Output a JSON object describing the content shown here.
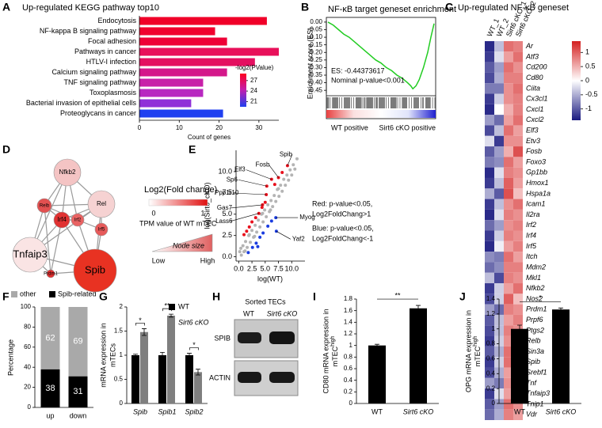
{
  "panel_labels": [
    "A",
    "B",
    "C",
    "D",
    "E",
    "F",
    "G",
    "H",
    "I",
    "J"
  ],
  "chart_data": [
    {
      "type": "hbar",
      "title": "Up-regulated KEGG pathway top10",
      "categories": [
        "Endocytosis",
        "NF-kappa B signaling pathway",
        "Focal adhesion",
        "Pathways in cancer",
        "HTLV-I infection",
        "Calcium signaling pathway",
        "TNF signaling pathway",
        "Toxoplasmosis",
        "Bacterial invasion of epithelial cells",
        "Proteoglycans in cancer"
      ],
      "values": [
        32,
        19,
        22,
        35,
        29,
        22,
        16,
        16,
        13,
        21
      ],
      "colors": [
        "#f00028",
        "#f0002e",
        "#ee0036",
        "#e8105a",
        "#e41060",
        "#d4188a",
        "#c820a8",
        "#b828c0",
        "#9030d8",
        "#2040f0"
      ],
      "xlim": [
        0,
        35
      ],
      "xticks": [
        0,
        10,
        20,
        30
      ],
      "xlabel": "Count of genes",
      "colorbar": {
        "title": "-log2(PValue)",
        "colors": [
          "#2040f0",
          "#c020b0",
          "#ff0020"
        ],
        "lim": [
          19.5,
          29
        ],
        "ticks": [
          27,
          24,
          21
        ]
      }
    },
    {
      "type": "line",
      "title": "NF-κB target geneset enrichment",
      "ylabel": "Enrichment score (ES)",
      "x": [
        0,
        5,
        10,
        15,
        20,
        25,
        30,
        35,
        40,
        45,
        50,
        55,
        60,
        65,
        70,
        75,
        78,
        80,
        83,
        86,
        90,
        94,
        97,
        100
      ],
      "values": [
        0,
        -0.02,
        -0.05,
        -0.08,
        -0.1,
        -0.13,
        -0.16,
        -0.19,
        -0.22,
        -0.25,
        -0.27,
        -0.3,
        -0.32,
        -0.35,
        -0.37,
        -0.4,
        -0.42,
        -0.44,
        -0.42,
        -0.38,
        -0.3,
        -0.2,
        -0.1,
        -0.01
      ],
      "color": "#22cc22",
      "xlim": [
        0,
        100
      ],
      "ylim": [
        -0.47,
        0.01
      ],
      "yticks": [
        {
          "value": 0,
          "label": "0.00"
        },
        {
          "value": -0.05,
          "label": "-0.05"
        },
        {
          "value": -0.1,
          "label": "-0.10"
        },
        {
          "value": -0.15,
          "label": "-0.15"
        },
        {
          "value": -0.2,
          "label": "-0.20"
        },
        {
          "value": -0.25,
          "label": "-0.25"
        },
        {
          "value": -0.3,
          "label": "-0.30"
        },
        {
          "value": -0.35,
          "label": "-0.35"
        },
        {
          "value": -0.4,
          "label": "-0.40"
        },
        {
          "value": -0.45,
          "label": "-0.45"
        }
      ],
      "annotations": [
        "ES: -0.44373617",
        "Nominal p-value<0.001"
      ],
      "bottom_labels": [
        "WT positive",
        "Sirt6 cKO positive"
      ]
    },
    {
      "type": "heatmap",
      "title": "Up-regulated NF-κB geneset",
      "columns": [
        "WT_1",
        "WT_2",
        "Sirt6 cKO_1",
        "Sirt6 cKO_2"
      ],
      "rows": [
        "Ar",
        "Atf3",
        "Cd200",
        "Cd80",
        "Ciita",
        "Cx3cl1",
        "Cxcl1",
        "Cxcl2",
        "Elf3",
        "Etv3",
        "Fosb",
        "Foxo3",
        "Gp1bb",
        "Hmox1",
        "Hspa1a",
        "Icam1",
        "Il2ra",
        "Irf2",
        "Irf4",
        "Irf5",
        "Itch",
        "Mdm2",
        "Mkl1",
        "Nfkb2",
        "Nos2",
        "Prdm1",
        "Prpf6",
        "Ptgs2",
        "Relb",
        "Sin3a",
        "Spib",
        "Srebf1",
        "Tnf",
        "Tnfaip3",
        "Tnip1",
        "Vdr"
      ],
      "values": [
        [
          -1.3,
          -0.4,
          0.9,
          0.8
        ],
        [
          -1.2,
          -0.2,
          0.6,
          0.9
        ],
        [
          -1.0,
          -0.6,
          0.9,
          0.7
        ],
        [
          -1.1,
          -0.5,
          0.8,
          0.8
        ],
        [
          -0.8,
          -0.8,
          0.7,
          0.9
        ],
        [
          -1.2,
          -0.3,
          0.7,
          0.8
        ],
        [
          -1.3,
          0.0,
          0.5,
          0.8
        ],
        [
          -0.6,
          -0.9,
          0.6,
          0.9
        ],
        [
          -1.1,
          -0.4,
          0.9,
          0.6
        ],
        [
          -0.2,
          -1.2,
          0.7,
          0.7
        ],
        [
          -1.0,
          -0.6,
          0.5,
          1.1
        ],
        [
          -0.8,
          -0.7,
          0.9,
          0.6
        ],
        [
          -1.3,
          -0.2,
          0.8,
          0.7
        ],
        [
          -1.2,
          -0.4,
          1.0,
          0.6
        ],
        [
          -0.5,
          -1.0,
          1.1,
          0.4
        ],
        [
          -1.2,
          -0.4,
          0.7,
          0.9
        ],
        [
          -1.3,
          -0.2,
          0.8,
          0.7
        ],
        [
          -0.9,
          -0.6,
          0.7,
          0.8
        ],
        [
          -1.2,
          -0.3,
          0.8,
          0.7
        ],
        [
          -1.3,
          -0.1,
          0.6,
          0.8
        ],
        [
          -0.7,
          -0.8,
          0.9,
          0.6
        ],
        [
          -0.9,
          -0.7,
          0.8,
          0.8
        ],
        [
          -0.4,
          -1.1,
          0.8,
          0.7
        ],
        [
          -1.2,
          -0.3,
          0.6,
          0.9
        ],
        [
          -1.1,
          -0.3,
          1.0,
          0.4
        ],
        [
          -0.6,
          -0.9,
          0.8,
          0.7
        ],
        [
          -1.0,
          -0.4,
          0.6,
          0.8
        ],
        [
          -1.1,
          -0.4,
          0.8,
          0.7
        ],
        [
          -1.2,
          -0.3,
          0.7,
          0.8
        ],
        [
          -1.0,
          -0.5,
          0.9,
          0.6
        ],
        [
          -1.2,
          -0.3,
          0.9,
          0.6
        ],
        [
          -1.1,
          -0.5,
          0.6,
          1.0
        ],
        [
          -0.6,
          -0.8,
          0.7,
          0.7
        ],
        [
          -1.2,
          -0.2,
          0.6,
          0.8
        ],
        [
          -1.0,
          -0.6,
          0.9,
          0.7
        ],
        [
          -0.9,
          -0.5,
          0.8,
          0.6
        ]
      ],
      "colorbar": {
        "colors": [
          "#1a1a80",
          "#ffffff",
          "#d42020"
        ],
        "lim": [
          -1.4,
          1.4
        ],
        "ticks": [
          1,
          0.5,
          0,
          -0.5,
          -1
        ]
      }
    },
    {
      "type": "scatter",
      "xlabel": "log(WT)",
      "ylabel": "log(Sirt6_cKO)",
      "xlim": [
        -0.5,
        12.5
      ],
      "ylim": [
        -0.5,
        12.5
      ],
      "xticks": [
        {
          "value": 0,
          "label": "0.0"
        },
        2.5,
        {
          "value": 5,
          "label": "5.0"
        },
        7.5,
        {
          "value": 10,
          "label": "10.0"
        }
      ],
      "yticks": [
        {
          "value": 0,
          "label": "0.0"
        },
        2.5,
        {
          "value": 5,
          "label": "5.0"
        },
        7.5,
        {
          "value": 10,
          "label": "10.0"
        }
      ],
      "series": [
        {
          "color": "#b4b4b4",
          "x": [
            0.2,
            0.5,
            0.8,
            1.0,
            1.3,
            1.6,
            1.9,
            2.2,
            2.5,
            2.8,
            3.1,
            3.4,
            3.7,
            4.0,
            4.3,
            4.6,
            4.9,
            5.2,
            5.5,
            5.8,
            6.1,
            6.4,
            6.7,
            7.0,
            7.3,
            7.6,
            7.9,
            8.2,
            8.5,
            8.8,
            9.1,
            9.4,
            9.7,
            10.0,
            10.3,
            10.6,
            11.0,
            0.4,
            1.2,
            2.0,
            3.0,
            4.5,
            6.0,
            7.5
          ],
          "values": [
            0.6,
            0.2,
            1.3,
            0.6,
            1.8,
            1.1,
            2.5,
            1.7,
            3.1,
            2.3,
            3.7,
            2.9,
            4.3,
            3.5,
            5.0,
            4.1,
            5.5,
            4.7,
            6.1,
            5.3,
            6.6,
            5.9,
            7.2,
            6.5,
            7.9,
            7.1,
            8.4,
            7.7,
            9.1,
            8.4,
            9.6,
            9.0,
            10.2,
            9.6,
            10.8,
            10.3,
            11.5,
            1.0,
            0.7,
            2.6,
            2.4,
            5.1,
            5.5,
            8.0
          ]
        },
        {
          "color": "#e8101c",
          "x": [
            1.5,
            2.5,
            3.2,
            3.8,
            4.4,
            4.5,
            5.0,
            5.2,
            5.3,
            6.2,
            6.8,
            7.5,
            8.2,
            9.2,
            1.0,
            2.0
          ],
          "values": [
            3.0,
            4.1,
            4.6,
            5.1,
            5.8,
            6.1,
            6.4,
            7.3,
            8.3,
            9.1,
            8.5,
            9.3,
            9.9,
            10.7,
            2.6,
            3.5
          ],
          "labels": [
            null,
            null,
            null,
            "Lass6",
            null,
            "Gas7",
            null,
            "Ppp1r10",
            "Sp6",
            "Elf3",
            null,
            "Fosb",
            null,
            "Spib",
            null,
            null
          ]
        },
        {
          "color": "#1a3ce0",
          "x": [
            1.8,
            2.6,
            3.3,
            4.0,
            4.6,
            5.5,
            6.2,
            7.0,
            7.1,
            3.6
          ],
          "values": [
            0.5,
            1.1,
            1.6,
            2.3,
            2.8,
            3.6,
            4.2,
            4.6,
            3.0,
            1.2
          ],
          "labels": [
            null,
            null,
            null,
            null,
            null,
            null,
            null,
            "Myog",
            "Yaf2",
            null
          ]
        }
      ],
      "legend_text": [
        "Red: p-value<0.05,",
        "Log2FoldChang>1",
        "Blue: p-value<0.05,",
        "Log2FoldChang<-1"
      ]
    },
    {
      "type": "stacked_bar",
      "ylabel": "Percentage",
      "categories": [
        "up",
        "down"
      ],
      "series": [
        {
          "name": "Spib-related",
          "color": "#000000",
          "values": [
            38,
            31
          ]
        },
        {
          "name": "other",
          "color": "#a9a9a9",
          "values": [
            62,
            69
          ]
        }
      ],
      "ylim": [
        0,
        100
      ],
      "yticks": [
        0,
        20,
        40,
        60,
        80,
        100
      ]
    },
    {
      "type": "grouped_bar",
      "ylabel": [
        "mRNA expression in",
        "mTECs"
      ],
      "categories": [
        "Spib",
        "Spib1",
        "Spib2"
      ],
      "series": [
        {
          "name": "WT",
          "color": "#000000",
          "values": [
            1.0,
            1.0,
            1.0
          ],
          "errors": [
            0.02,
            0.06,
            0.04
          ]
        },
        {
          "name": "Sirt6 cKO",
          "color": "#7f7f7f",
          "values": [
            1.48,
            1.82,
            0.65
          ],
          "errors": [
            0.07,
            0.03,
            0.06
          ]
        }
      ],
      "ylim": [
        0,
        2
      ],
      "yticks": [
        0,
        0.5,
        1,
        1.5,
        2
      ],
      "significance": [
        "*",
        "**",
        "*"
      ]
    },
    {
      "type": "bar",
      "ylabel": [
        "CD80 mRNA expression in",
        "mTEC"
      ],
      "ylabel_sup": "high",
      "categories": [
        "WT",
        "Sirt6 cKO"
      ],
      "values": [
        1.0,
        1.64
      ],
      "errors": [
        0.02,
        0.05
      ],
      "color": "#000000",
      "ylim": [
        0,
        1.8
      ],
      "yticks": [
        0,
        0.2,
        0.4,
        0.6,
        0.8,
        1,
        1.2,
        1.4,
        1.6,
        1.8
      ],
      "significance": "**"
    },
    {
      "type": "bar",
      "ylabel": [
        "OPG mRNA expression in",
        "mTEC"
      ],
      "ylabel_sup": "high",
      "categories": [
        "WT",
        "Sirt6 cKO"
      ],
      "values": [
        1.0,
        1.26
      ],
      "errors": [
        0.05,
        0.02
      ],
      "color": "#000000",
      "ylim": [
        0,
        1.4
      ],
      "yticks": [
        0,
        0.2,
        0.4,
        0.6,
        0.8,
        1,
        1.2,
        1.4
      ],
      "significance": "*"
    }
  ],
  "network": {
    "legend_title": "Log2(Fold change)",
    "legend_colors": [
      "#ffffff",
      "#e01010"
    ],
    "legend_ticks": [
      0,
      1
    ],
    "size_title": "TPM value of WT mTEC",
    "size_label": "Node size",
    "size_low": "Low",
    "size_high": "High",
    "nodes": [
      {
        "label": "Nfkb2",
        "color": "#f4c4c4"
      },
      {
        "label": "Relb",
        "color": "#e25050"
      },
      {
        "label": "Rel",
        "color": "#f6d2d2"
      },
      {
        "label": "Irf4",
        "color": "#e03232"
      },
      {
        "label": "Irf2",
        "color": "#e86262"
      },
      {
        "label": "Irf5",
        "color": "#e65a5a"
      },
      {
        "label": "Tnfaip3",
        "color": "#fae4e4"
      },
      {
        "label": "Spib",
        "color": "#e83222"
      },
      {
        "label": "Prdm1",
        "color": "#e03030"
      }
    ]
  },
  "blot": {
    "title": "Sorted TECs",
    "lanes": [
      "WT",
      "Sirt6 cKO"
    ],
    "rows": [
      "SPIB",
      "ACTIN"
    ]
  }
}
